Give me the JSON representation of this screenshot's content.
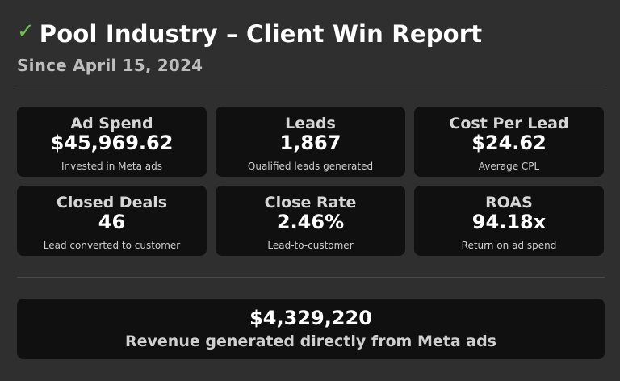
{
  "header": {
    "check_icon": "✓",
    "title": "Pool Industry – Client Win Report",
    "subtitle": "Since April 15, 2024"
  },
  "metrics": [
    {
      "label": "Ad Spend",
      "value": "$45,969.62",
      "desc": "Invested in Meta ads"
    },
    {
      "label": "Leads",
      "value": "1,867",
      "desc": "Qualified leads generated"
    },
    {
      "label": "Cost Per Lead",
      "value": "$24.62",
      "desc": "Average CPL"
    },
    {
      "label": "Closed Deals",
      "value": "46",
      "desc": "Lead converted to customer"
    },
    {
      "label": "Close Rate",
      "value": "2.46%",
      "desc": "Lead-to-customer"
    },
    {
      "label": "ROAS",
      "value": "94.18x",
      "desc": "Return on ad spend"
    }
  ],
  "revenue": {
    "value": "$4,329,220",
    "desc": "Revenue generated directly from Meta ads"
  },
  "colors": {
    "background": "#2f2f2f",
    "card": "#101010",
    "check": "#6cc44a"
  }
}
